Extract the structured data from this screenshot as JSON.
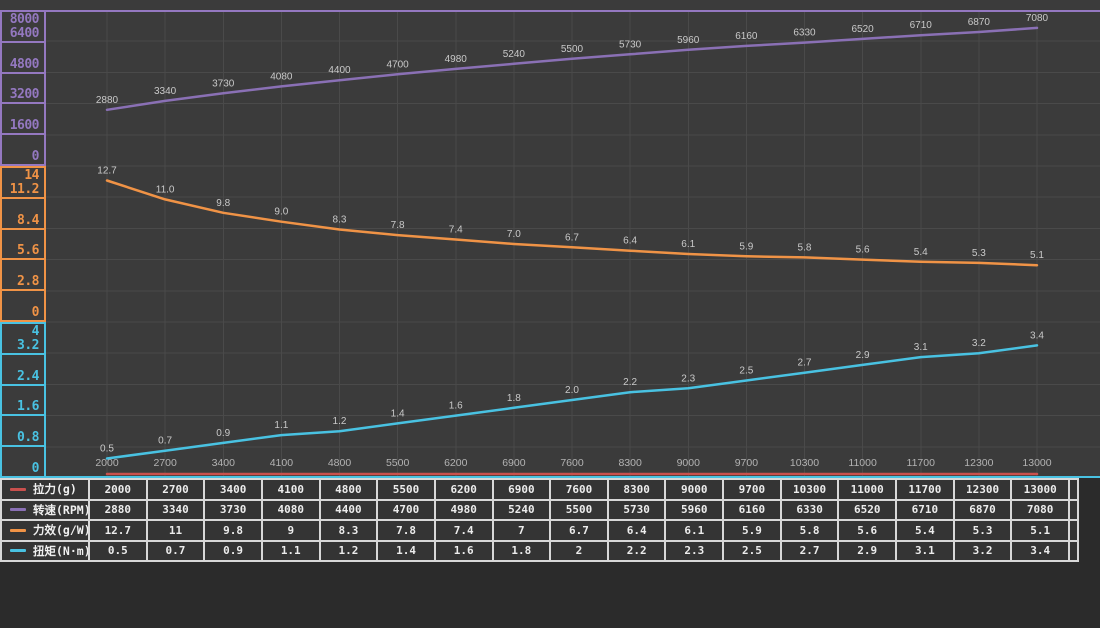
{
  "colors": {
    "background": "#3b3b3b",
    "bottom_region": "#2b2b2b",
    "grid": "#4a4a4a",
    "point_label": "#c9c9c9",
    "x_axis_label": "#b3b3b3",
    "table_border": "#d8d8d8",
    "table_cell_bg": "#343434",
    "thrust_red": "#c9504d",
    "rpm_purple": "#8a70b5",
    "efficiency_orange": "#f09346",
    "torque_cyan": "#49c2e2"
  },
  "chart_data": {
    "type": "line",
    "grid": true,
    "legend_position": "table-left",
    "x": [
      2000,
      2700,
      3400,
      4100,
      4800,
      5500,
      6200,
      6900,
      7600,
      8300,
      9000,
      9700,
      10300,
      11000,
      11700,
      12300,
      13000
    ],
    "x_labels": [
      "2000",
      "2700",
      "3400",
      "4100",
      "4800",
      "5500",
      "6200",
      "6900",
      "7600",
      "8300",
      "9000",
      "9700",
      "10300",
      "11000",
      "11700",
      "12300",
      "13000"
    ],
    "axes": [
      {
        "id": "rpm",
        "color": "#9478c0",
        "max": 8000,
        "ticks": [
          "8000",
          "6400",
          "4800",
          "3200",
          "1600",
          "0"
        ]
      },
      {
        "id": "efficiency",
        "color": "#f09346",
        "max": 14,
        "ticks": [
          "14",
          "11.2",
          "8.4",
          "5.6",
          "2.8",
          "0"
        ]
      },
      {
        "id": "torque",
        "color": "#49c2e2",
        "max": 4,
        "ticks": [
          "4",
          "3.2",
          "2.4",
          "1.6",
          "0.8",
          "0"
        ]
      }
    ],
    "series": [
      {
        "name": "拉力(g)",
        "color": "#c9504d",
        "axis": null,
        "values": [
          2000,
          2700,
          3400,
          4100,
          4800,
          5500,
          6200,
          6900,
          7600,
          8300,
          9000,
          9700,
          10300,
          11000,
          11700,
          12300,
          13000
        ],
        "point_labels": []
      },
      {
        "name": "转速(RPM)",
        "color": "#8a70b5",
        "axis": 0,
        "values": [
          2880,
          3340,
          3730,
          4080,
          4400,
          4700,
          4980,
          5240,
          5500,
          5730,
          5960,
          6160,
          6330,
          6520,
          6710,
          6870,
          7080
        ],
        "point_labels": [
          "2880",
          "3340",
          "3730",
          "4080",
          "4400",
          "4700",
          "4980",
          "5240",
          "5500",
          "5730",
          "5960",
          "6160",
          "6330",
          "6520",
          "6710",
          "6870",
          "7080"
        ]
      },
      {
        "name": "力效(g/W)",
        "color": "#f09346",
        "axis": 1,
        "values": [
          12.7,
          11,
          9.8,
          9,
          8.3,
          7.8,
          7.4,
          7,
          6.7,
          6.4,
          6.1,
          5.9,
          5.8,
          5.6,
          5.4,
          5.3,
          5.1
        ],
        "point_labels": [
          "12.7",
          "11.0",
          "9.8",
          "9.0",
          "8.3",
          "7.8",
          "7.4",
          "7.0",
          "6.7",
          "6.4",
          "6.1",
          "5.9",
          "5.8",
          "5.6",
          "5.4",
          "5.3",
          "5.1"
        ]
      },
      {
        "name": "扭矩(N·m)",
        "color": "#49c2e2",
        "axis": 2,
        "values": [
          0.5,
          0.7,
          0.9,
          1.1,
          1.2,
          1.4,
          1.6,
          1.8,
          2,
          2.2,
          2.3,
          2.5,
          2.7,
          2.9,
          3.1,
          3.2,
          3.4
        ],
        "point_labels": [
          "0.5",
          "0.7",
          "0.9",
          "1.1",
          "1.2",
          "1.4",
          "1.6",
          "1.8",
          "2.0",
          "2.2",
          "2.3",
          "2.5",
          "2.7",
          "2.9",
          "3.1",
          "3.2",
          "3.4"
        ]
      }
    ]
  },
  "table": {
    "rows": [
      {
        "legend": "拉力(g)",
        "color": "#c9504d",
        "values": [
          "2000",
          "2700",
          "3400",
          "4100",
          "4800",
          "5500",
          "6200",
          "6900",
          "7600",
          "8300",
          "9000",
          "9700",
          "10300",
          "11000",
          "11700",
          "12300",
          "13000"
        ]
      },
      {
        "legend": "转速(RPM)",
        "color": "#8a70b5",
        "values": [
          "2880",
          "3340",
          "3730",
          "4080",
          "4400",
          "4700",
          "4980",
          "5240",
          "5500",
          "5730",
          "5960",
          "6160",
          "6330",
          "6520",
          "6710",
          "6870",
          "7080"
        ]
      },
      {
        "legend": "力效(g/W)",
        "color": "#f09346",
        "values": [
          "12.7",
          "11",
          "9.8",
          "9",
          "8.3",
          "7.8",
          "7.4",
          "7",
          "6.7",
          "6.4",
          "6.1",
          "5.9",
          "5.8",
          "5.6",
          "5.4",
          "5.3",
          "5.1"
        ]
      },
      {
        "legend": "扭矩(N·m)",
        "color": "#49c2e2",
        "values": [
          "0.5",
          "0.7",
          "0.9",
          "1.1",
          "1.2",
          "1.4",
          "1.6",
          "1.8",
          "2",
          "2.2",
          "2.3",
          "2.5",
          "2.7",
          "2.9",
          "3.1",
          "3.2",
          "3.4"
        ]
      }
    ]
  }
}
